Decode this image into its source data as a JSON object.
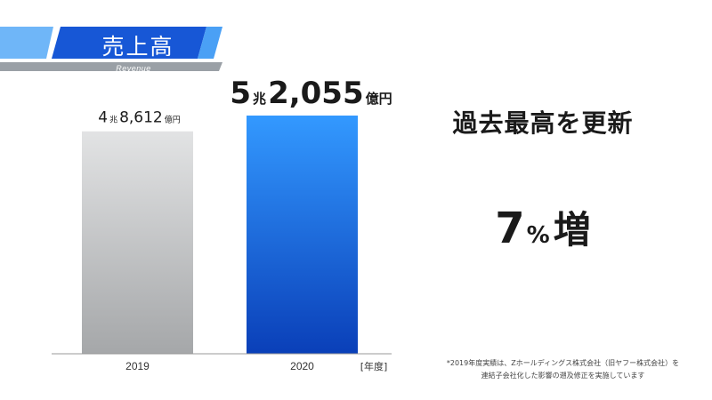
{
  "header": {
    "title": "売上高",
    "subtitle": "Revenue"
  },
  "chart_data": {
    "type": "bar",
    "categories": [
      "2019",
      "2020"
    ],
    "values": [
      48612,
      52055
    ],
    "value_labels": [
      {
        "num1": "4",
        "unit1": "兆",
        "num2": "8,612",
        "unit2": "億円"
      },
      {
        "num1": "5",
        "unit1": "兆",
        "num2": "2,055",
        "unit2": "億円"
      }
    ],
    "xlabel": "[年度]",
    "ylabel": "",
    "ylim": [
      0,
      54000
    ],
    "colors": {
      "bar_2019_top": "#e2e3e4",
      "bar_2019_bottom": "#a5a7a9",
      "bar_2020_top": "#3399ff",
      "bar_2020_bottom": "#0a3fb8",
      "banner_main": "#1757d6",
      "banner_light": "#4aa0f5",
      "banner_gray": "#9aa0a6"
    }
  },
  "headline": "過去最高を更新",
  "growth": {
    "value": "7",
    "unit": "%",
    "word": "増"
  },
  "footnote": [
    "*2019年度実績は、Zホールディングス株式会社（旧ヤフー株式会社）を",
    "連結子会社化した影響の遡及修正を実施しています"
  ]
}
